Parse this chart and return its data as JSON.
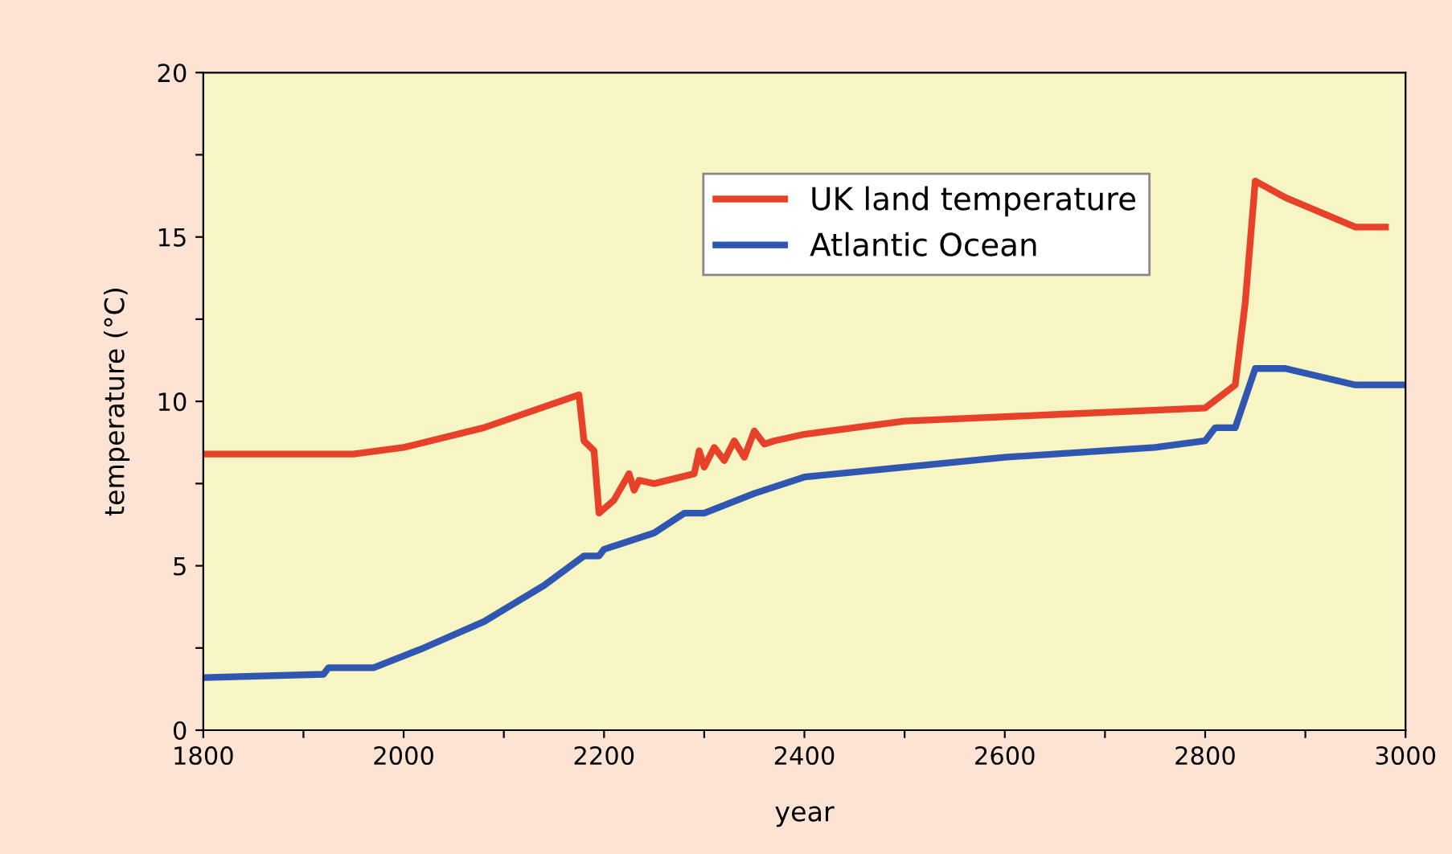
{
  "chart_data": {
    "type": "line",
    "xlabel": "year",
    "ylabel": "temperature (°C)",
    "xlim": [
      1800,
      3000
    ],
    "ylim": [
      0,
      20
    ],
    "xticks": [
      1800,
      {
        "value": 1900,
        "label": null
      },
      2000,
      {
        "value": 2100,
        "label": null
      },
      2200,
      {
        "value": 2300,
        "label": null
      },
      2400,
      {
        "value": 2500,
        "label": null
      },
      2600,
      {
        "value": 2700,
        "label": null
      },
      2800,
      {
        "value": 2900,
        "label": null
      },
      3000
    ],
    "yticks": [
      0,
      {
        "value": 2.5,
        "label": null
      },
      5,
      {
        "value": 7.5,
        "label": null
      },
      10,
      {
        "value": 12.5,
        "label": null
      },
      15,
      {
        "value": 17.5,
        "label": null
      },
      20
    ],
    "grid": false,
    "legend": "top right",
    "marker": "none",
    "line_style": "solid",
    "series": [
      {
        "name": "UK land temperature",
        "color": "#e8412a",
        "x": [
          1800,
          1950,
          2000,
          2080,
          2175,
          2180,
          2190,
          2195,
          2210,
          2225,
          2230,
          2235,
          2250,
          2290,
          2295,
          2300,
          2310,
          2320,
          2330,
          2340,
          2350,
          2360,
          2370,
          2400,
          2500,
          2650,
          2800,
          2830,
          2840,
          2850,
          2880,
          2950,
          2980
        ],
        "values": [
          8.4,
          8.4,
          8.6,
          9.2,
          10.2,
          8.8,
          8.5,
          6.6,
          7.0,
          7.8,
          7.3,
          7.6,
          7.5,
          7.8,
          8.5,
          8.0,
          8.6,
          8.2,
          8.8,
          8.3,
          9.1,
          8.7,
          8.8,
          9.0,
          9.4,
          9.6,
          9.8,
          10.5,
          13.0,
          16.7,
          16.2,
          15.3,
          15.3
        ]
      },
      {
        "name": "Atlantic Ocean",
        "color": "#2f56b0",
        "x": [
          1800,
          1920,
          1925,
          1970,
          2020,
          2080,
          2140,
          2180,
          2195,
          2200,
          2250,
          2280,
          2300,
          2350,
          2400,
          2500,
          2600,
          2750,
          2800,
          2810,
          2830,
          2850,
          2880,
          2950,
          3000
        ],
        "values": [
          1.6,
          1.7,
          1.9,
          1.9,
          2.5,
          3.3,
          4.4,
          5.3,
          5.3,
          5.5,
          6.0,
          6.6,
          6.6,
          7.2,
          7.7,
          8.0,
          8.3,
          8.6,
          8.8,
          9.2,
          9.2,
          11.0,
          11.0,
          10.5,
          10.5
        ]
      }
    ]
  }
}
